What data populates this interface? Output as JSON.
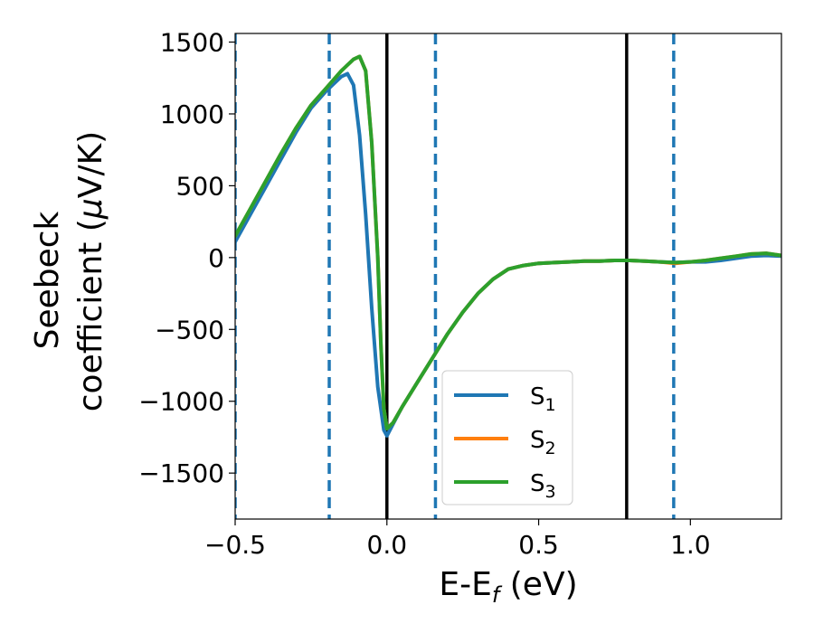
{
  "chart_data": {
    "type": "line",
    "xlabel": "E-E",
    "xlabel_sub": "f",
    "xlabel_unit": " (eV)",
    "ylabel_line1": "Seebeck",
    "ylabel_line2": "coefficient  (",
    "ylabel_mu": "μ",
    "ylabel_unit": "V/K)",
    "xlim": [
      -0.5,
      1.3
    ],
    "ylim": [
      -1820,
      1560
    ],
    "x_ticks": [
      -0.5,
      0.0,
      0.5,
      1.0
    ],
    "x_tick_labels": [
      "−0.5",
      "0.0",
      "0.5",
      "1.0"
    ],
    "y_ticks": [
      -1500,
      -1000,
      -500,
      0,
      500,
      1000,
      1500
    ],
    "y_tick_labels": [
      "−1500",
      "−1000",
      "−500",
      "0",
      "500",
      "1000",
      "1500"
    ],
    "grid": false,
    "legend_position": "lower-center",
    "vlines_solid": [
      0.0,
      0.79
    ],
    "vlines_dashed": [
      -0.5,
      -0.19,
      0.16,
      0.945
    ],
    "vline_solid_color": "#000000",
    "vline_dashed_color": "#1f77b4",
    "series": [
      {
        "name": "S",
        "sub": "1",
        "color": "#1f77b4",
        "x": [
          -0.5,
          -0.45,
          -0.4,
          -0.35,
          -0.3,
          -0.25,
          -0.2,
          -0.15,
          -0.13,
          -0.11,
          -0.09,
          -0.07,
          -0.05,
          -0.03,
          -0.01,
          0.0,
          0.02,
          0.05,
          0.1,
          0.15,
          0.2,
          0.25,
          0.3,
          0.35,
          0.4,
          0.45,
          0.5,
          0.55,
          0.6,
          0.65,
          0.7,
          0.75,
          0.8,
          0.85,
          0.9,
          0.95,
          1.0,
          1.05,
          1.1,
          1.15,
          1.2,
          1.25,
          1.3
        ],
        "y": [
          110,
          300,
          490,
          680,
          870,
          1040,
          1160,
          1260,
          1280,
          1200,
          850,
          300,
          -350,
          -900,
          -1200,
          -1240,
          -1160,
          -1040,
          -870,
          -700,
          -530,
          -380,
          -250,
          -150,
          -80,
          -55,
          -40,
          -35,
          -30,
          -25,
          -25,
          -20,
          -20,
          -25,
          -30,
          -35,
          -30,
          -30,
          -20,
          -5,
          10,
          15,
          10
        ]
      },
      {
        "name": "S",
        "sub": "2",
        "color": "#ff7f0e",
        "x": [
          -0.5,
          -0.45,
          -0.4,
          -0.35,
          -0.3,
          -0.25,
          -0.2,
          -0.15,
          -0.11,
          -0.09,
          -0.07,
          -0.05,
          -0.03,
          -0.02,
          -0.01,
          0.0,
          0.02,
          0.05,
          0.1,
          0.15,
          0.2,
          0.25,
          0.3,
          0.35,
          0.4,
          0.45,
          0.5,
          0.55,
          0.6,
          0.65,
          0.7,
          0.75,
          0.8,
          0.85,
          0.9,
          0.95,
          1.0,
          1.05,
          1.1,
          1.15,
          1.2,
          1.25,
          1.3
        ],
        "y": [
          150,
          340,
          530,
          720,
          900,
          1060,
          1180,
          1300,
          1380,
          1400,
          1300,
          800,
          0,
          -600,
          -1050,
          -1190,
          -1150,
          -1040,
          -870,
          -700,
          -530,
          -380,
          -250,
          -150,
          -80,
          -55,
          -40,
          -35,
          -30,
          -25,
          -25,
          -20,
          -20,
          -25,
          -30,
          -40,
          -30,
          -20,
          -5,
          10,
          25,
          30,
          15
        ]
      },
      {
        "name": "S",
        "sub": "3",
        "color": "#2ca02c",
        "x": [
          -0.5,
          -0.45,
          -0.4,
          -0.35,
          -0.3,
          -0.25,
          -0.2,
          -0.15,
          -0.11,
          -0.09,
          -0.07,
          -0.05,
          -0.03,
          -0.02,
          -0.01,
          0.0,
          0.02,
          0.05,
          0.1,
          0.15,
          0.2,
          0.25,
          0.3,
          0.35,
          0.4,
          0.45,
          0.5,
          0.55,
          0.6,
          0.65,
          0.7,
          0.75,
          0.8,
          0.85,
          0.9,
          0.95,
          1.0,
          1.05,
          1.1,
          1.15,
          1.2,
          1.25,
          1.3
        ],
        "y": [
          150,
          340,
          530,
          720,
          900,
          1060,
          1180,
          1300,
          1380,
          1400,
          1300,
          800,
          0,
          -600,
          -1050,
          -1190,
          -1150,
          -1040,
          -870,
          -700,
          -530,
          -380,
          -250,
          -150,
          -80,
          -55,
          -40,
          -35,
          -30,
          -25,
          -25,
          -20,
          -20,
          -25,
          -30,
          -35,
          -30,
          -20,
          -5,
          10,
          25,
          30,
          15
        ]
      }
    ]
  }
}
